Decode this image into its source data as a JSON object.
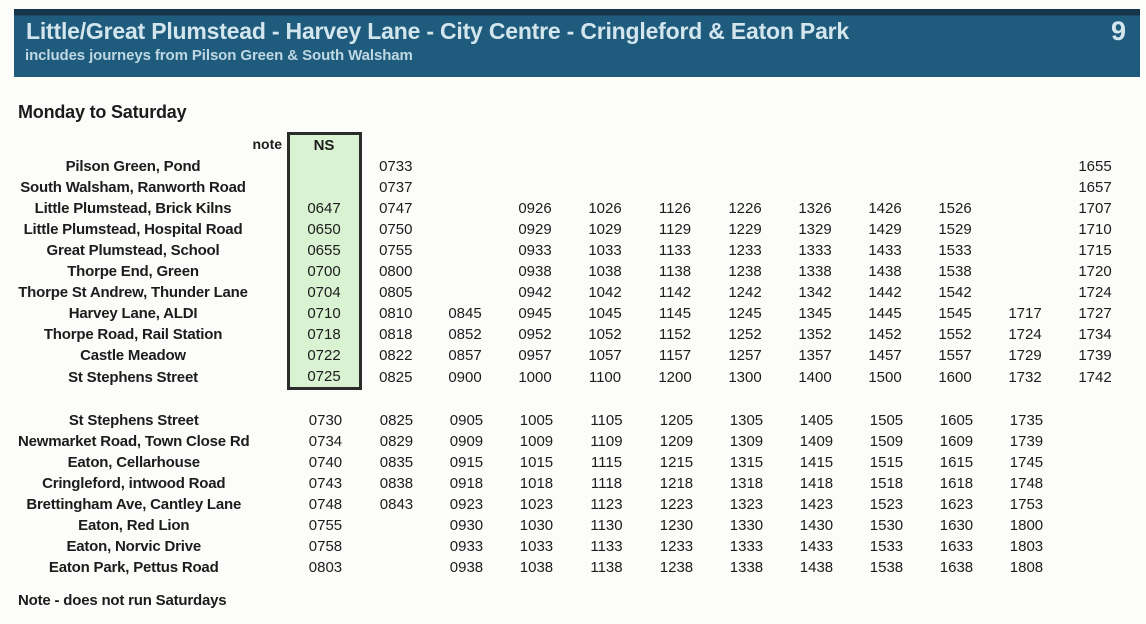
{
  "header": {
    "title": "Little/Great Plumstead - Harvey Lane - City Centre - Cringleford & Eaton Park",
    "route_number": "9",
    "subtitle": "includes journeys from Pilson Green & South Walsham"
  },
  "section": {
    "title": "Monday to Saturday"
  },
  "table1": {
    "note_label": "note",
    "ns_header": "NS",
    "rows": [
      {
        "stop": "Pilson Green, Pond",
        "times": [
          "",
          "0733",
          "",
          "",
          "",
          "",
          "",
          "",
          "",
          "",
          "",
          "1655"
        ]
      },
      {
        "stop": "South Walsham, Ranworth Road",
        "times": [
          "",
          "0737",
          "",
          "",
          "",
          "",
          "",
          "",
          "",
          "",
          "",
          "1657"
        ]
      },
      {
        "stop": "Little Plumstead, Brick Kilns",
        "times": [
          "0647",
          "0747",
          "",
          "0926",
          "1026",
          "1126",
          "1226",
          "1326",
          "1426",
          "1526",
          "",
          "1707"
        ]
      },
      {
        "stop": "Little Plumstead, Hospital Road",
        "times": [
          "0650",
          "0750",
          "",
          "0929",
          "1029",
          "1129",
          "1229",
          "1329",
          "1429",
          "1529",
          "",
          "1710"
        ]
      },
      {
        "stop": "Great Plumstead, School",
        "times": [
          "0655",
          "0755",
          "",
          "0933",
          "1033",
          "1133",
          "1233",
          "1333",
          "1433",
          "1533",
          "",
          "1715"
        ]
      },
      {
        "stop": "Thorpe End, Green",
        "times": [
          "0700",
          "0800",
          "",
          "0938",
          "1038",
          "1138",
          "1238",
          "1338",
          "1438",
          "1538",
          "",
          "1720"
        ]
      },
      {
        "stop": "Thorpe St Andrew, Thunder Lane",
        "times": [
          "0704",
          "0805",
          "",
          "0942",
          "1042",
          "1142",
          "1242",
          "1342",
          "1442",
          "1542",
          "",
          "1724"
        ]
      },
      {
        "stop": "Harvey Lane, ALDI",
        "times": [
          "0710",
          "0810",
          "0845",
          "0945",
          "1045",
          "1145",
          "1245",
          "1345",
          "1445",
          "1545",
          "1717",
          "1727"
        ]
      },
      {
        "stop": "Thorpe Road, Rail Station",
        "times": [
          "0718",
          "0818",
          "0852",
          "0952",
          "1052",
          "1152",
          "1252",
          "1352",
          "1452",
          "1552",
          "1724",
          "1734"
        ]
      },
      {
        "stop": "Castle Meadow",
        "times": [
          "0722",
          "0822",
          "0857",
          "0957",
          "1057",
          "1157",
          "1257",
          "1357",
          "1457",
          "1557",
          "1729",
          "1739"
        ]
      },
      {
        "stop": "St Stephens Street",
        "times": [
          "0725",
          "0825",
          "0900",
          "1000",
          "1100",
          "1200",
          "1300",
          "1400",
          "1500",
          "1600",
          "1732",
          "1742"
        ]
      }
    ]
  },
  "table2": {
    "rows": [
      {
        "stop": "St Stephens Street",
        "times": [
          "0730",
          "0825",
          "0905",
          "1005",
          "1105",
          "1205",
          "1305",
          "1405",
          "1505",
          "1605",
          "1735",
          ""
        ]
      },
      {
        "stop": "Newmarket Road, Town Close Rd",
        "times": [
          "0734",
          "0829",
          "0909",
          "1009",
          "1109",
          "1209",
          "1309",
          "1409",
          "1509",
          "1609",
          "1739",
          ""
        ]
      },
      {
        "stop": "Eaton, Cellarhouse",
        "times": [
          "0740",
          "0835",
          "0915",
          "1015",
          "1115",
          "1215",
          "1315",
          "1415",
          "1515",
          "1615",
          "1745",
          ""
        ]
      },
      {
        "stop": "Cringleford, intwood Road",
        "times": [
          "0743",
          "0838",
          "0918",
          "1018",
          "1118",
          "1218",
          "1318",
          "1418",
          "1518",
          "1618",
          "1748",
          ""
        ]
      },
      {
        "stop": "Brettingham Ave, Cantley Lane",
        "times": [
          "0748",
          "0843",
          "0923",
          "1023",
          "1123",
          "1223",
          "1323",
          "1423",
          "1523",
          "1623",
          "1753",
          ""
        ]
      },
      {
        "stop": "Eaton, Red Lion",
        "times": [
          "0755",
          "",
          "0930",
          "1030",
          "1130",
          "1230",
          "1330",
          "1430",
          "1530",
          "1630",
          "1800",
          ""
        ]
      },
      {
        "stop": "Eaton, Norvic Drive",
        "times": [
          "0758",
          "",
          "0933",
          "1033",
          "1133",
          "1233",
          "1333",
          "1433",
          "1533",
          "1633",
          "1803",
          ""
        ]
      },
      {
        "stop": "Eaton Park, Pettus Road",
        "times": [
          "0803",
          "",
          "0938",
          "1038",
          "1138",
          "1238",
          "1338",
          "1438",
          "1538",
          "1638",
          "1808",
          ""
        ]
      }
    ]
  },
  "footnote": "Note - does not run Saturdays",
  "colors": {
    "header_bg": "#1f5b7c",
    "header_bg_top": "#16374b",
    "header_text": "#d3e6ee",
    "header_subtext": "#bed8e3",
    "ns_fill": "#d9f2d2",
    "ns_border": "#2b2b2b",
    "body_text": "#1c1c1c",
    "page_bg": "#fcfcfa"
  }
}
